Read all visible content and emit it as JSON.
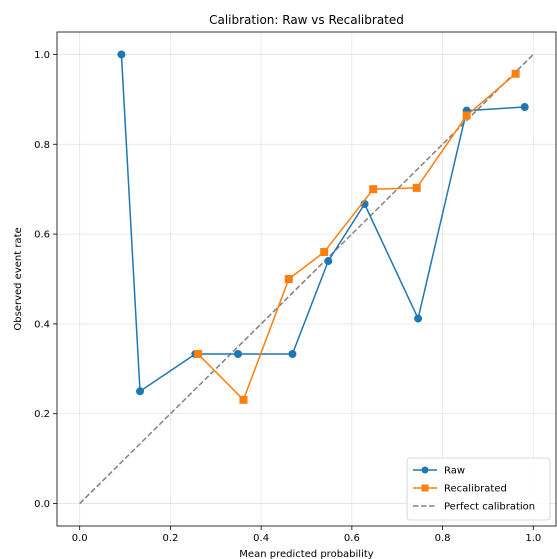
{
  "chart_data": {
    "type": "line",
    "title": "Calibration: Raw vs Recalibrated",
    "xlabel": "Mean predicted probability",
    "ylabel": "Observed event rate",
    "xlim": [
      -0.05,
      1.05
    ],
    "ylim": [
      -0.05,
      1.05
    ],
    "xticks": [
      "0.0",
      "0.2",
      "0.4",
      "0.6",
      "0.8",
      "1.0"
    ],
    "yticks": [
      "0.0",
      "0.2",
      "0.4",
      "0.6",
      "0.8",
      "1.0"
    ],
    "grid": true,
    "legend_position": "bottom-right",
    "series": [
      {
        "name": "Raw",
        "color": "#1f77b4",
        "marker": "circle",
        "linestyle": "solid",
        "x": [
          0.092,
          0.133,
          0.255,
          0.349,
          0.469,
          0.548,
          0.628,
          0.746,
          0.853,
          0.981
        ],
        "y": [
          1.0,
          0.25,
          0.333,
          0.333,
          0.333,
          0.54,
          0.667,
          0.412,
          0.875,
          0.883
        ]
      },
      {
        "name": "Recalibrated",
        "color": "#ff7f0e",
        "marker": "square",
        "linestyle": "solid",
        "x": [
          0.261,
          0.361,
          0.461,
          0.539,
          0.647,
          0.743,
          0.853,
          0.961
        ],
        "y": [
          0.333,
          0.231,
          0.5,
          0.56,
          0.7,
          0.703,
          0.864,
          0.957
        ]
      },
      {
        "name": "Perfect calibration",
        "color": "#808080",
        "marker": "none",
        "linestyle": "dashed",
        "x": [
          0.0,
          1.0
        ],
        "y": [
          0.0,
          1.0
        ]
      }
    ]
  }
}
